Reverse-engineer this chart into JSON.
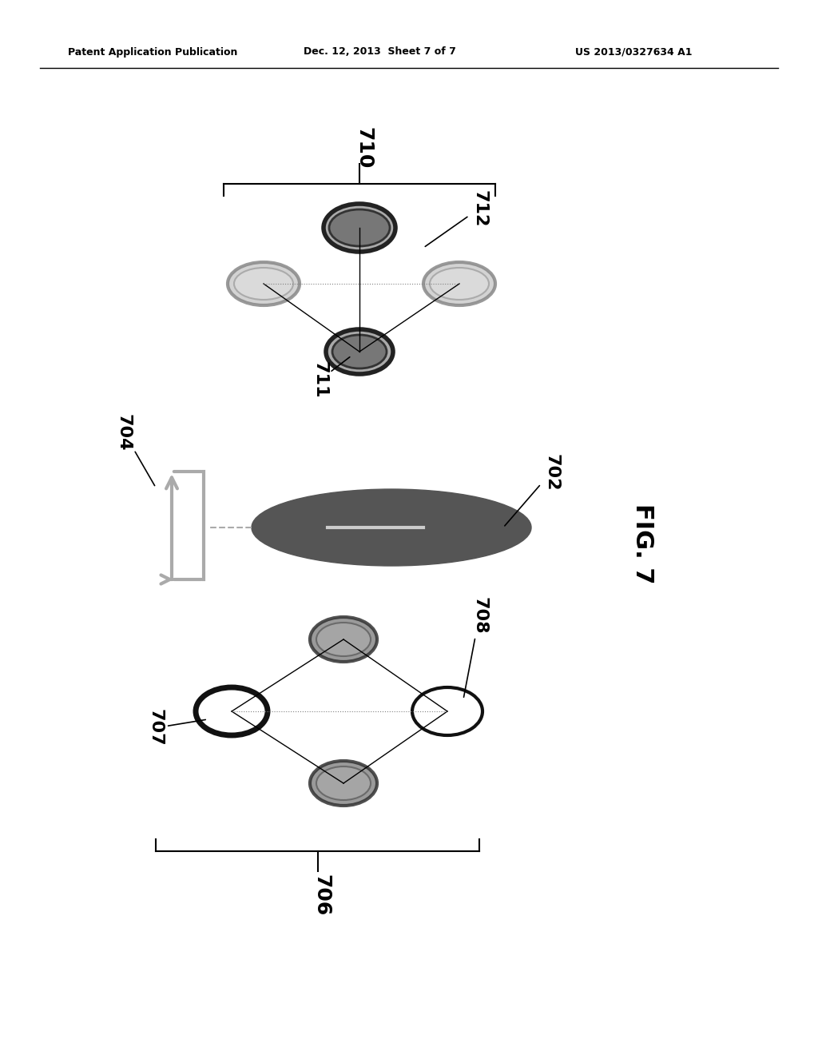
{
  "header_left": "Patent Application Publication",
  "header_mid": "Dec. 12, 2013  Sheet 7 of 7",
  "header_right": "US 2013/0327634 A1",
  "fig_label": "FIG. 7",
  "bg_color": "#ffffff",
  "label_710": "710",
  "label_706": "706",
  "label_702": "702",
  "label_704": "704",
  "label_707": "707",
  "label_708": "708",
  "label_711": "711",
  "label_712": "712"
}
